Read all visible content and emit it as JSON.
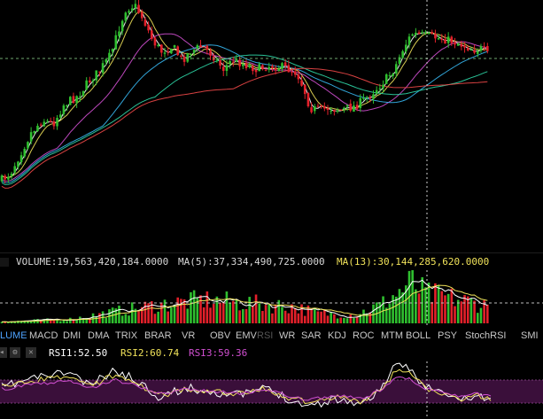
{
  "theme": {
    "bg": "#000000",
    "up": "#2fbf2f",
    "down": "#e3202a",
    "crosshair": "#cfcfcf",
    "ref_line": "#6fa86f"
  },
  "price_panel": {
    "ma_colors": [
      "#ffffff",
      "#f0e25a",
      "#d04fd0",
      "#36b6f0",
      "#2ed6a6",
      "#f04848"
    ]
  },
  "volume_info": {
    "volume": "VOLUME:19,563,420,184.0000",
    "ma5": "MA(5):37,334,490,725.0000",
    "ma13": "MA(13):30,144,285,620.0000",
    "colors": {
      "volume": "#d8d8d8",
      "ma5": "#d8d8d8",
      "ma13": "#f0e25a"
    }
  },
  "indicator_tabs": [
    {
      "label": "LUME",
      "state": "active"
    },
    {
      "label": "MACD",
      "state": "normal"
    },
    {
      "label": "DMI",
      "state": "normal"
    },
    {
      "label": "DMA",
      "state": "normal"
    },
    {
      "label": "TRIX",
      "state": "normal"
    },
    {
      "label": "BRAR",
      "state": "normal"
    },
    {
      "label": "VR",
      "state": "normal"
    },
    {
      "label": "OBV",
      "state": "normal"
    },
    {
      "label": "EMV",
      "state": "normal"
    },
    {
      "label": "RSI",
      "state": "disabled"
    },
    {
      "label": "WR",
      "state": "normal"
    },
    {
      "label": "SAR",
      "state": "normal"
    },
    {
      "label": "KDJ",
      "state": "normal"
    },
    {
      "label": "ROC",
      "state": "normal"
    },
    {
      "label": "MTM",
      "state": "normal"
    },
    {
      "label": "BOLL",
      "state": "normal"
    },
    {
      "label": "PSY",
      "state": "normal"
    },
    {
      "label": "StochRSI",
      "state": "normal"
    },
    {
      "label": "SMI",
      "state": "normal"
    }
  ],
  "rsi_info": {
    "settings_icon": "gear-icon",
    "close_icon": "close-icon",
    "rsi1": "RSI1:52.50",
    "rsi2": "RSI2:60.74",
    "rsi3": "RSI3:59.36",
    "colors": {
      "rsi1": "#ffffff",
      "rsi2": "#f0e25a",
      "rsi3": "#d04fd0",
      "band": "#3a0f3a"
    }
  }
}
